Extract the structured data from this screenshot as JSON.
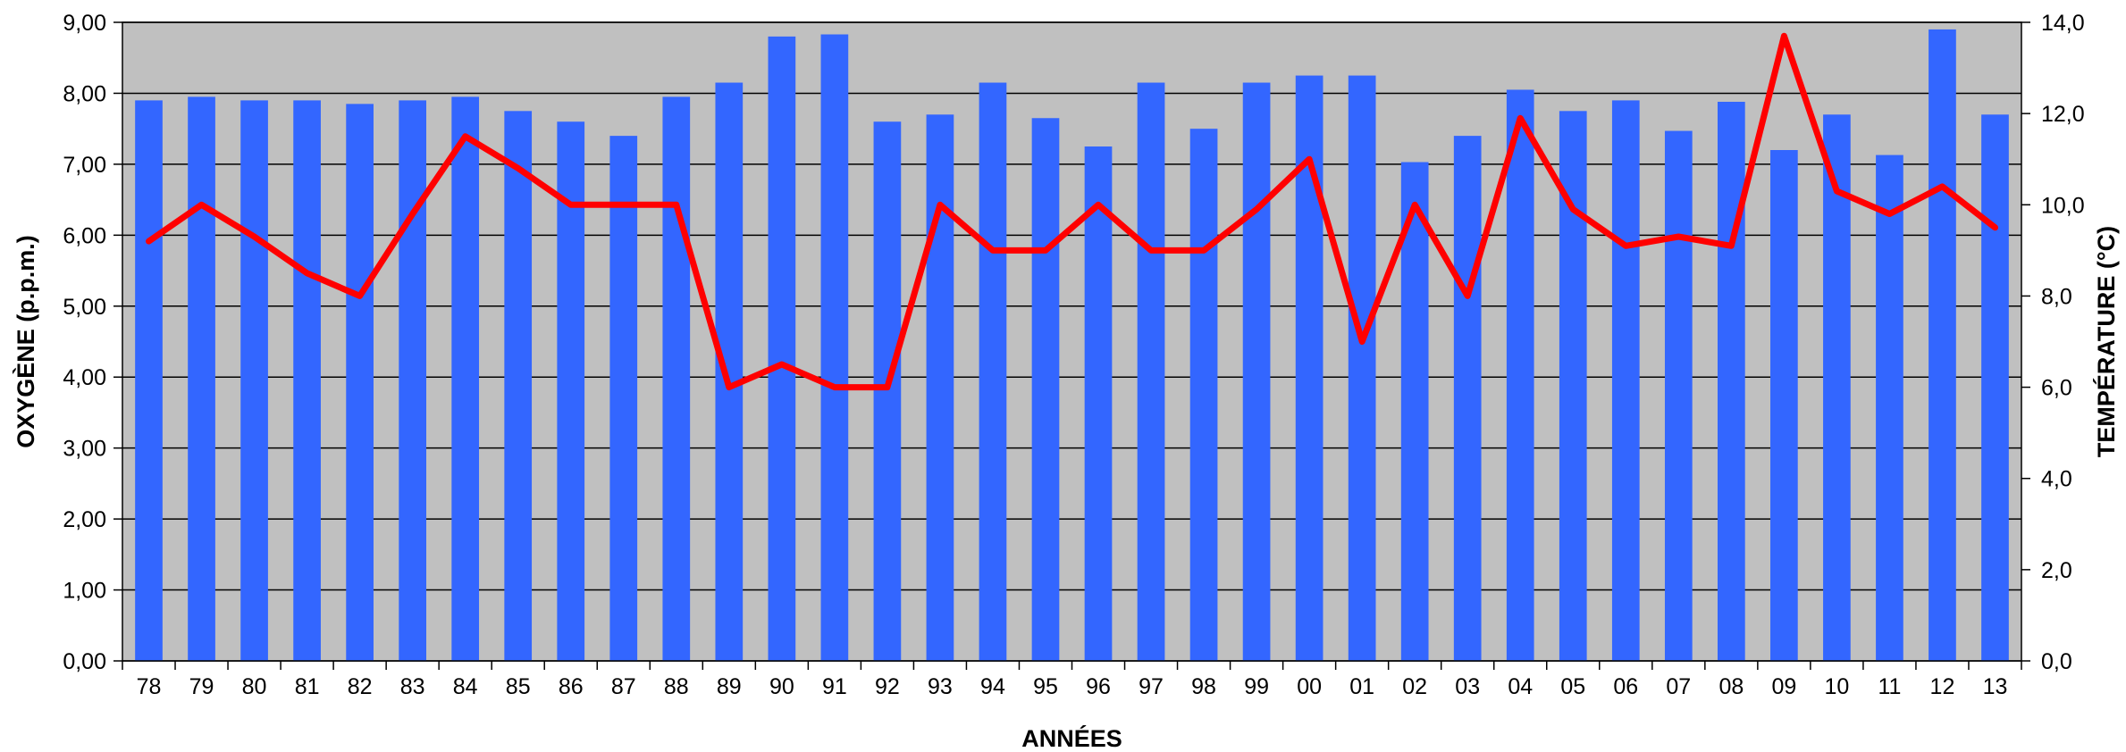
{
  "chart_data": {
    "type": "bar",
    "combo": "bar + line (secondary axis)",
    "categories": [
      "78",
      "79",
      "80",
      "81",
      "82",
      "83",
      "84",
      "85",
      "86",
      "87",
      "88",
      "89",
      "90",
      "91",
      "92",
      "93",
      "94",
      "95",
      "96",
      "97",
      "98",
      "99",
      "00",
      "01",
      "02",
      "03",
      "04",
      "05",
      "06",
      "07",
      "08",
      "09",
      "10",
      "11",
      "12",
      "13"
    ],
    "series": [
      {
        "type": "bar",
        "axis": "left",
        "color": "#3366ff",
        "values": [
          7.9,
          7.95,
          7.9,
          7.9,
          7.85,
          7.9,
          7.95,
          7.75,
          7.6,
          7.4,
          7.95,
          8.15,
          8.8,
          8.83,
          7.6,
          7.7,
          8.15,
          7.65,
          7.25,
          8.15,
          7.5,
          8.15,
          8.25,
          8.25,
          7.03,
          7.4,
          8.05,
          7.75,
          7.9,
          7.47,
          7.88,
          7.2,
          7.7,
          7.13,
          8.9,
          7.7
        ]
      },
      {
        "type": "line",
        "axis": "right",
        "color": "#ff0000",
        "values": [
          9.2,
          10.0,
          9.3,
          8.5,
          8.0,
          9.8,
          11.5,
          10.8,
          10.0,
          10.0,
          10.0,
          6.0,
          6.5,
          6.0,
          6.0,
          10.0,
          9.0,
          9.0,
          10.0,
          9.0,
          9.0,
          9.9,
          11.0,
          7.0,
          10.0,
          8.0,
          11.9,
          9.9,
          9.1,
          9.3,
          9.1,
          13.7,
          10.3,
          9.8,
          10.4,
          9.5
        ]
      }
    ],
    "xlabel": "ANNÉES",
    "ylabel": "OXYGÈNE (p.p.m.)",
    "ylabel_right": "TEMPÉRATURE (°C)",
    "ylim": [
      0,
      9
    ],
    "ylim_right": [
      0,
      14
    ],
    "yticks": [
      "0,00",
      "1,00",
      "2,00",
      "3,00",
      "4,00",
      "5,00",
      "6,00",
      "7,00",
      "8,00",
      "9,00"
    ],
    "yticks_right": [
      "0,0",
      "2,0",
      "4,0",
      "6,0",
      "8,0",
      "10,0",
      "12,0",
      "14,0"
    ],
    "plot_background": "#c0c0c0",
    "grid": true,
    "legend": "none"
  }
}
